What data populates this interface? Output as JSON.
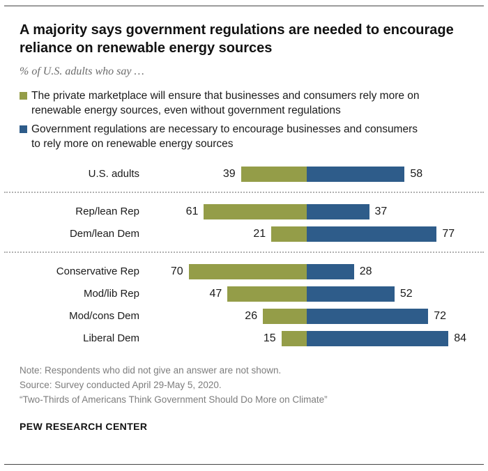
{
  "page": {
    "title": "A majority says government regulations are needed to encourage reliance on renewable energy sources",
    "subtitle": "% of U.S. adults who say …",
    "notes": [
      "Note: Respondents who did not give an answer are not shown.",
      "Source: Survey conducted April 29-May 5, 2020.",
      "“Two-Thirds of Americans Think Government Should Do More on Climate”"
    ],
    "brand": "PEW RESEARCH CENTER"
  },
  "colors": {
    "private_marketplace": "#949d48",
    "government_regulations": "#2e5c8a"
  },
  "chart_data": {
    "type": "bar",
    "variant": "diverging-horizontal",
    "title": "A majority says government regulations are needed to encourage reliance on renewable energy sources",
    "subtitle": "% of U.S. adults who say …",
    "categories": [
      "U.S. adults",
      "Rep/lean Rep",
      "Dem/lean Dem",
      "Conservative Rep",
      "Mod/lib Rep",
      "Mod/cons Dem",
      "Liberal Dem"
    ],
    "groups": [
      [
        0
      ],
      [
        1,
        2
      ],
      [
        3,
        4,
        5,
        6
      ]
    ],
    "series": [
      {
        "name": "The private marketplace will ensure that businesses and consumers rely more on renewable energy sources, even without government regulations",
        "side": "left",
        "color": "#949d48",
        "values": [
          39,
          61,
          21,
          70,
          47,
          26,
          15
        ]
      },
      {
        "name": "Government regulations are necessary to encourage businesses and consumers to rely more on renewable energy sources",
        "side": "right",
        "color": "#2e5c8a",
        "values": [
          58,
          37,
          77,
          28,
          52,
          72,
          84
        ]
      }
    ],
    "legend_position": "top",
    "axis": "hidden",
    "value_labels": "outside-ends",
    "xlim": [
      -100,
      100
    ]
  }
}
